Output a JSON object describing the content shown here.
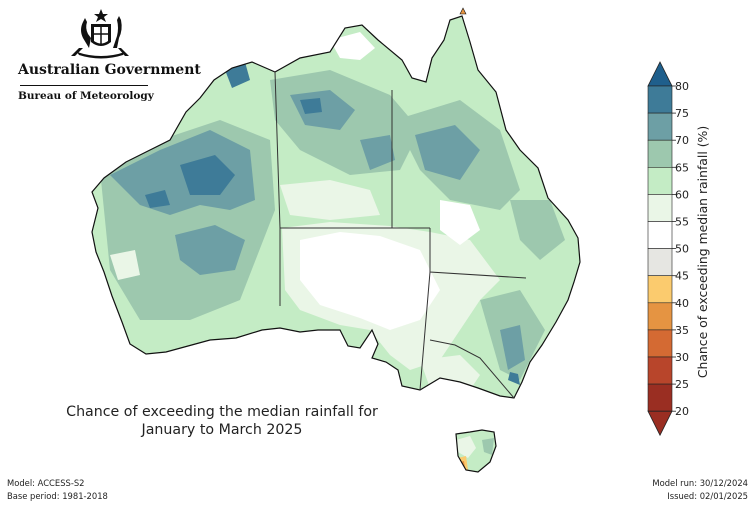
{
  "header": {
    "government": "Australian Government",
    "agency": "Bureau of Meteorology"
  },
  "title": {
    "line1": "Chance of exceeding the median rainfall for",
    "line2": "January to March 2025"
  },
  "legend": {
    "title": "Chance of exceeding median rainfall (%)",
    "ticks": [
      "80",
      "75",
      "70",
      "65",
      "60",
      "55",
      "50",
      "45",
      "40",
      "35",
      "30",
      "25",
      "20"
    ],
    "colors": [
      "#1f5f8c",
      "#3e7b98",
      "#6d9fa5",
      "#9dc8ae",
      "#c4ecc5",
      "#eaf6e7",
      "#ffffff",
      "#e6e6e2",
      "#fbcb6e",
      "#e59442",
      "#d46a33",
      "#b8452b",
      "#9a2e22"
    ],
    "top_arrow_color": "#1f5f8c",
    "bottom_arrow_color": "#9a2e22"
  },
  "footer": {
    "model": "Model: ACCESS-S2",
    "base_period": "Base period: 1981-2018",
    "model_run": "Model run: 30/12/2024",
    "issued": "Issued: 02/01/2025"
  },
  "map_colors": {
    "ocean": "#ffffff",
    "outline": "#111111",
    "border": "#333333"
  }
}
